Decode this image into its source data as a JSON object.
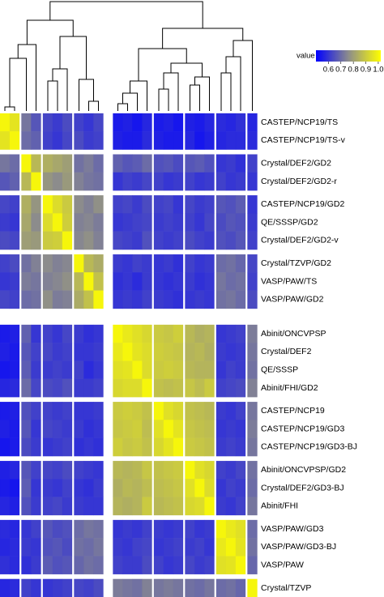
{
  "chart_data": {
    "type": "heatmap",
    "legend_title": "value",
    "zlim": [
      0.5,
      1.02
    ],
    "colors": [
      "#0000ff",
      "#8c8c8c",
      "#ffff00"
    ],
    "colorbar_ticks": [
      0.6,
      0.7,
      0.8,
      0.9,
      {
        "value": 1,
        "label": "1.0"
      }
    ],
    "rows": [
      "CASTEP/NCP19/TS",
      "CASTEP/NCP19/TS-v",
      "Crystal/DEF2/GD2",
      "Crystal/DEF2/GD2-r",
      "CASTEP/NCP19/GD2",
      "QE/SSSP/GD2",
      "Crystal/DEF2/GD2-v",
      "Crystal/TZVP/GD2",
      "VASP/PAW/TS",
      "VASP/PAW/GD2",
      "Abinit/ONCVPSP",
      "Crystal/DEF2",
      "QE/SSSP",
      "Abinit/FHI/GD2",
      "CASTEP/NCP19",
      "CASTEP/NCP19/GD3",
      "CASTEP/NCP19/GD3-BJ",
      "Abinit/ONCVPSP/GD2",
      "Crystal/DEF2/GD3-BJ",
      "Abinit/FHI",
      "VASP/PAW/GD3",
      "VASP/PAW/GD3-BJ",
      "VASP/PAW",
      "Crystal/TZVP"
    ],
    "values": [
      [
        1.0,
        0.96,
        0.72,
        0.66,
        0.63,
        0.61,
        0.64,
        0.62,
        0.6,
        0.63,
        0.55,
        0.56,
        0.54,
        0.57,
        0.55,
        0.56,
        0.54,
        0.56,
        0.55,
        0.57,
        0.58,
        0.57,
        0.59,
        0.57
      ],
      [
        0.96,
        1.0,
        0.7,
        0.68,
        0.62,
        0.6,
        0.63,
        0.64,
        0.61,
        0.62,
        0.56,
        0.55,
        0.55,
        0.58,
        0.56,
        0.55,
        0.55,
        0.57,
        0.54,
        0.56,
        0.57,
        0.58,
        0.58,
        0.58
      ],
      [
        0.72,
        0.7,
        1.0,
        0.86,
        0.84,
        0.82,
        0.8,
        0.71,
        0.73,
        0.7,
        0.68,
        0.66,
        0.67,
        0.7,
        0.65,
        0.66,
        0.64,
        0.66,
        0.67,
        0.65,
        0.6,
        0.61,
        0.59,
        0.62
      ],
      [
        0.66,
        0.68,
        0.86,
        1.0,
        0.78,
        0.76,
        0.79,
        0.74,
        0.72,
        0.71,
        0.6,
        0.62,
        0.61,
        0.63,
        0.62,
        0.6,
        0.61,
        0.62,
        0.6,
        0.61,
        0.62,
        0.6,
        0.61,
        0.6
      ],
      [
        0.63,
        0.62,
        0.84,
        0.78,
        1.0,
        0.94,
        0.9,
        0.76,
        0.74,
        0.77,
        0.62,
        0.63,
        0.61,
        0.64,
        0.62,
        0.63,
        0.6,
        0.63,
        0.61,
        0.62,
        0.66,
        0.65,
        0.67,
        0.6
      ],
      [
        0.61,
        0.6,
        0.82,
        0.76,
        0.94,
        1.0,
        0.91,
        0.74,
        0.75,
        0.73,
        0.6,
        0.61,
        0.62,
        0.63,
        0.61,
        0.62,
        0.61,
        0.62,
        0.6,
        0.63,
        0.64,
        0.66,
        0.65,
        0.61
      ],
      [
        0.64,
        0.63,
        0.8,
        0.79,
        0.9,
        0.91,
        1.0,
        0.75,
        0.77,
        0.74,
        0.63,
        0.62,
        0.61,
        0.65,
        0.62,
        0.61,
        0.62,
        0.64,
        0.62,
        0.61,
        0.65,
        0.64,
        0.66,
        0.62
      ],
      [
        0.62,
        0.64,
        0.71,
        0.74,
        0.76,
        0.74,
        0.75,
        1.0,
        0.86,
        0.83,
        0.61,
        0.6,
        0.62,
        0.61,
        0.6,
        0.61,
        0.59,
        0.62,
        0.6,
        0.61,
        0.7,
        0.71,
        0.69,
        0.63
      ],
      [
        0.6,
        0.61,
        0.73,
        0.72,
        0.74,
        0.75,
        0.77,
        0.86,
        1.0,
        0.88,
        0.59,
        0.6,
        0.58,
        0.61,
        0.6,
        0.59,
        0.6,
        0.61,
        0.59,
        0.6,
        0.72,
        0.7,
        0.71,
        0.62
      ],
      [
        0.63,
        0.62,
        0.7,
        0.71,
        0.77,
        0.73,
        0.74,
        0.83,
        0.88,
        1.0,
        0.6,
        0.61,
        0.6,
        0.62,
        0.61,
        0.6,
        0.59,
        0.6,
        0.61,
        0.6,
        0.71,
        0.72,
        0.7,
        0.64
      ],
      [
        0.55,
        0.56,
        0.68,
        0.6,
        0.62,
        0.6,
        0.63,
        0.61,
        0.59,
        0.6,
        1.0,
        0.97,
        0.95,
        0.93,
        0.9,
        0.89,
        0.91,
        0.86,
        0.84,
        0.85,
        0.6,
        0.61,
        0.62,
        0.73
      ],
      [
        0.56,
        0.55,
        0.66,
        0.62,
        0.63,
        0.61,
        0.62,
        0.6,
        0.6,
        0.61,
        0.97,
        1.0,
        0.96,
        0.94,
        0.91,
        0.9,
        0.89,
        0.85,
        0.86,
        0.84,
        0.61,
        0.6,
        0.61,
        0.72
      ],
      [
        0.54,
        0.55,
        0.67,
        0.61,
        0.61,
        0.62,
        0.61,
        0.62,
        0.58,
        0.6,
        0.95,
        0.96,
        1.0,
        0.94,
        0.9,
        0.91,
        0.9,
        0.86,
        0.85,
        0.85,
        0.6,
        0.62,
        0.61,
        0.71
      ],
      [
        0.57,
        0.58,
        0.7,
        0.63,
        0.64,
        0.63,
        0.65,
        0.61,
        0.61,
        0.62,
        0.93,
        0.94,
        0.94,
        1.0,
        0.88,
        0.87,
        0.88,
        0.89,
        0.87,
        0.9,
        0.62,
        0.63,
        0.64,
        0.74
      ],
      [
        0.55,
        0.56,
        0.65,
        0.62,
        0.62,
        0.61,
        0.62,
        0.6,
        0.6,
        0.61,
        0.9,
        0.91,
        0.9,
        0.88,
        1.0,
        0.95,
        0.93,
        0.88,
        0.87,
        0.86,
        0.61,
        0.6,
        0.62,
        0.72
      ],
      [
        0.56,
        0.55,
        0.66,
        0.6,
        0.63,
        0.62,
        0.61,
        0.61,
        0.59,
        0.6,
        0.89,
        0.9,
        0.91,
        0.87,
        0.95,
        1.0,
        0.96,
        0.89,
        0.88,
        0.87,
        0.6,
        0.61,
        0.6,
        0.73
      ],
      [
        0.54,
        0.55,
        0.64,
        0.61,
        0.6,
        0.61,
        0.62,
        0.59,
        0.6,
        0.59,
        0.91,
        0.89,
        0.9,
        0.88,
        0.93,
        0.96,
        1.0,
        0.9,
        0.89,
        0.88,
        0.61,
        0.62,
        0.61,
        0.72
      ],
      [
        0.56,
        0.57,
        0.66,
        0.62,
        0.63,
        0.62,
        0.64,
        0.62,
        0.61,
        0.6,
        0.86,
        0.85,
        0.86,
        0.89,
        0.88,
        0.89,
        0.9,
        1.0,
        0.95,
        0.93,
        0.62,
        0.61,
        0.63,
        0.71
      ],
      [
        0.55,
        0.54,
        0.67,
        0.6,
        0.61,
        0.6,
        0.62,
        0.6,
        0.59,
        0.61,
        0.84,
        0.86,
        0.85,
        0.87,
        0.87,
        0.88,
        0.89,
        0.95,
        1.0,
        0.94,
        0.6,
        0.62,
        0.61,
        0.7
      ],
      [
        0.57,
        0.56,
        0.65,
        0.61,
        0.62,
        0.63,
        0.61,
        0.61,
        0.6,
        0.6,
        0.85,
        0.84,
        0.85,
        0.9,
        0.86,
        0.87,
        0.88,
        0.93,
        0.94,
        1.0,
        0.61,
        0.6,
        0.62,
        0.72
      ],
      [
        0.58,
        0.57,
        0.6,
        0.62,
        0.66,
        0.64,
        0.65,
        0.7,
        0.72,
        0.71,
        0.6,
        0.61,
        0.6,
        0.62,
        0.61,
        0.6,
        0.61,
        0.62,
        0.6,
        0.61,
        1.0,
        0.97,
        0.95,
        0.7
      ],
      [
        0.57,
        0.58,
        0.61,
        0.6,
        0.65,
        0.66,
        0.64,
        0.71,
        0.7,
        0.72,
        0.61,
        0.6,
        0.62,
        0.63,
        0.6,
        0.61,
        0.62,
        0.61,
        0.62,
        0.6,
        0.97,
        1.0,
        0.96,
        0.71
      ],
      [
        0.59,
        0.58,
        0.59,
        0.61,
        0.67,
        0.65,
        0.66,
        0.69,
        0.71,
        0.7,
        0.62,
        0.61,
        0.61,
        0.64,
        0.62,
        0.6,
        0.61,
        0.63,
        0.61,
        0.62,
        0.95,
        0.96,
        1.0,
        0.69
      ],
      [
        0.57,
        0.58,
        0.62,
        0.6,
        0.6,
        0.61,
        0.62,
        0.63,
        0.62,
        0.64,
        0.73,
        0.72,
        0.71,
        0.74,
        0.72,
        0.73,
        0.72,
        0.71,
        0.7,
        0.72,
        0.7,
        0.71,
        0.69,
        1.0
      ]
    ]
  }
}
